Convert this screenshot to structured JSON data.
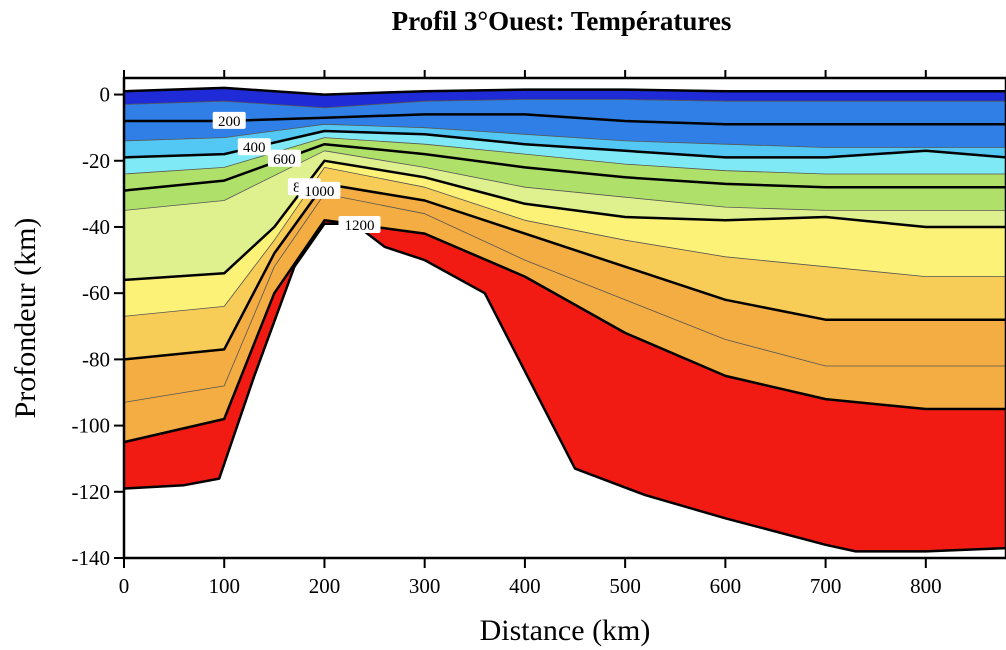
{
  "chart_data": {
    "type": "area",
    "title": "Profil 3°Ouest: Températures",
    "xlabel": "Distance (km)",
    "ylabel": "Profondeur (km)",
    "xlim": [
      0,
      880
    ],
    "ylim": [
      -140,
      5
    ],
    "x_ticks": [
      0,
      100,
      200,
      300,
      400,
      500,
      600,
      700,
      800
    ],
    "y_ticks": [
      0,
      -20,
      -40,
      -60,
      -80,
      -100,
      -120,
      -140
    ],
    "bands": [
      {
        "color": "#1f2bd6"
      },
      {
        "color": "#2f7fe6"
      },
      {
        "color": "#54c8f4"
      },
      {
        "color": "#7fe9f6"
      },
      {
        "color": "#aee06a"
      },
      {
        "color": "#dff08f"
      },
      {
        "color": "#fbf277"
      },
      {
        "color": "#f7cd58"
      },
      {
        "color": "#f3ad42"
      },
      {
        "color": "#f21b13"
      }
    ],
    "isotherms": [
      {
        "value": 0,
        "label": "",
        "major": true,
        "x": [
          0,
          100,
          200,
          300,
          400,
          500,
          600,
          700,
          800,
          880
        ],
        "y": [
          1,
          2,
          0,
          1,
          1.5,
          1.5,
          1,
          1,
          1,
          1
        ]
      },
      {
        "value": 100,
        "label": "",
        "major": false,
        "x": [
          0,
          100,
          200,
          300,
          400,
          500,
          600,
          700,
          800,
          880
        ],
        "y": [
          -3,
          -2,
          -4,
          -2,
          -1.5,
          -1.5,
          -2,
          -2,
          -2,
          -2
        ]
      },
      {
        "value": 200,
        "label": "200",
        "major": true,
        "x": [
          0,
          100,
          200,
          300,
          400,
          500,
          600,
          700,
          800,
          880
        ],
        "y": [
          -8,
          -8,
          -7,
          -6,
          -6,
          -8,
          -9,
          -9,
          -9,
          -9
        ]
      },
      {
        "value": 300,
        "label": "",
        "major": false,
        "x": [
          0,
          100,
          200,
          300,
          400,
          500,
          600,
          700,
          800,
          880
        ],
        "y": [
          -14,
          -13,
          -9,
          -10,
          -12,
          -14,
          -15,
          -16,
          -16,
          -16
        ]
      },
      {
        "value": 400,
        "label": "400",
        "major": true,
        "x": [
          0,
          100,
          200,
          300,
          400,
          500,
          600,
          700,
          800,
          880
        ],
        "y": [
          -19,
          -18,
          -11,
          -12,
          -15,
          -17,
          -19,
          -19,
          -17,
          -19
        ]
      },
      {
        "value": 500,
        "label": "",
        "major": false,
        "x": [
          0,
          100,
          200,
          300,
          400,
          500,
          600,
          700,
          800,
          880
        ],
        "y": [
          -24,
          -22,
          -13,
          -15,
          -18,
          -21,
          -23,
          -24,
          -24,
          -24
        ]
      },
      {
        "value": 600,
        "label": "600",
        "major": true,
        "x": [
          0,
          100,
          200,
          300,
          400,
          500,
          600,
          700,
          800,
          880
        ],
        "y": [
          -29,
          -26,
          -15,
          -18,
          -22,
          -25,
          -27,
          -28,
          -28,
          -28
        ]
      },
      {
        "value": 700,
        "label": "",
        "major": false,
        "x": [
          0,
          100,
          200,
          300,
          400,
          500,
          600,
          700,
          800,
          880
        ],
        "y": [
          -35,
          -32,
          -17,
          -22,
          -28,
          -31,
          -34,
          -35,
          -35,
          -35
        ]
      },
      {
        "value": 800,
        "label": "800",
        "major": true,
        "x": [
          0,
          100,
          150,
          200,
          300,
          400,
          500,
          600,
          700,
          800,
          880
        ],
        "y": [
          -56,
          -54,
          -40,
          -20,
          -25,
          -33,
          -37,
          -38,
          -37,
          -40,
          -40
        ]
      },
      {
        "value": 900,
        "label": "",
        "major": false,
        "x": [
          0,
          100,
          150,
          200,
          300,
          400,
          500,
          600,
          700,
          800,
          880
        ],
        "y": [
          -67,
          -64,
          -44,
          -22,
          -28,
          -38,
          -44,
          -49,
          -52,
          -55,
          -55
        ]
      },
      {
        "value": 1000,
        "label": "1000",
        "major": true,
        "x": [
          0,
          100,
          150,
          200,
          300,
          400,
          500,
          600,
          700,
          800,
          880
        ],
        "y": [
          -80,
          -77,
          -48,
          -27,
          -32,
          -42,
          -52,
          -62,
          -68,
          -68,
          -68
        ]
      },
      {
        "value": 1100,
        "label": "",
        "major": false,
        "x": [
          0,
          100,
          150,
          200,
          300,
          400,
          500,
          600,
          700,
          800,
          880
        ],
        "y": [
          -93,
          -88,
          -52,
          -30,
          -36,
          -50,
          -62,
          -74,
          -82,
          -82,
          -82
        ]
      },
      {
        "value": 1200,
        "label": "1200",
        "major": true,
        "x": [
          0,
          100,
          150,
          200,
          300,
          400,
          500,
          600,
          700,
          800,
          880
        ],
        "y": [
          -105,
          -98,
          -60,
          -38,
          -42,
          -55,
          -72,
          -85,
          -92,
          -95,
          -95
        ]
      },
      {
        "value": 1300,
        "label": "",
        "major": true,
        "x": [
          0,
          60,
          95,
          130,
          170,
          200,
          230,
          260,
          300,
          360,
          450,
          520,
          600,
          700,
          730,
          800,
          880
        ],
        "y": [
          -119,
          -118,
          -116,
          -85,
          -52,
          -39,
          -39,
          -46,
          -50,
          -60,
          -113,
          -121,
          -128,
          -136,
          -138,
          -138,
          -137
        ]
      }
    ]
  }
}
